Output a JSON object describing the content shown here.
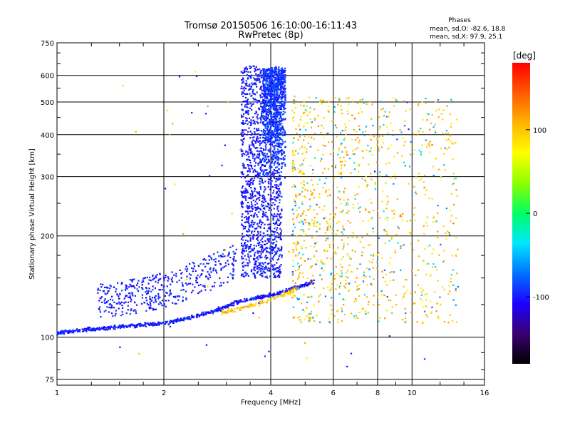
{
  "chart_data": {
    "type": "scatter",
    "title_line1": "Tromsø 20150506 16:10:00-16:11:43",
    "title_line2": "RwPretec (8p)",
    "phases": {
      "heading": "Phases",
      "line_o": "mean, sd,O: -82.6, 18.8",
      "line_x": "mean, sd,X:  97.9, 25.1"
    },
    "xlabel": "Frequency [MHz]",
    "ylabel": "Stationary phase Virtual Height [km]",
    "xscale": "log2",
    "yscale": "log",
    "xlim": [
      1,
      16
    ],
    "ylim": [
      72,
      750
    ],
    "x_ticks": [
      1,
      2,
      4,
      6,
      8,
      10,
      16
    ],
    "y_ticks": [
      75,
      100,
      200,
      300,
      400,
      500,
      600,
      750
    ],
    "grid": true,
    "colorbar": {
      "label": "[deg]",
      "min": -180,
      "max": 180,
      "ticks": [
        100,
        0,
        -100
      ],
      "colors": [
        "#000000",
        "#3a0072",
        "#1c00ff",
        "#0072ff",
        "#00e6ff",
        "#00ff64",
        "#8cff00",
        "#ffff00",
        "#ffb400",
        "#ff5a00",
        "#ff0000"
      ]
    },
    "series": [
      {
        "description": "O-mode traces (phase approx -100 deg)",
        "trace_lower": {
          "x": [
            1.0,
            1.3,
            1.6,
            2.0,
            2.4,
            2.8,
            3.2,
            3.5,
            3.8,
            4.2,
            4.6,
            5.0,
            5.3
          ],
          "y": [
            103,
            106,
            108,
            110,
            115,
            120,
            127,
            130,
            132,
            135,
            140,
            143,
            147
          ]
        },
        "trace_spread": {
          "x": [
            1.3,
            1.6,
            2.0,
            2.4,
            2.8,
            3.2
          ],
          "y": [
            125,
            130,
            135,
            145,
            155,
            165
          ]
        },
        "column_main": {
          "x": [
            3.3,
            4.3
          ],
          "y": [
            150,
            640
          ]
        },
        "column_core": {
          "x": [
            3.8,
            4.4
          ],
          "y": [
            280,
            630
          ]
        }
      },
      {
        "description": "X-mode traces (phase approx 100 deg)",
        "trace_lower": {
          "x": [
            2.9,
            3.3,
            3.8,
            4.3,
            4.8
          ],
          "y": [
            118,
            122,
            127,
            133,
            140
          ]
        },
        "cloud": {
          "x": [
            4.6,
            13.5
          ],
          "y": [
            110,
            520
          ]
        }
      }
    ]
  }
}
